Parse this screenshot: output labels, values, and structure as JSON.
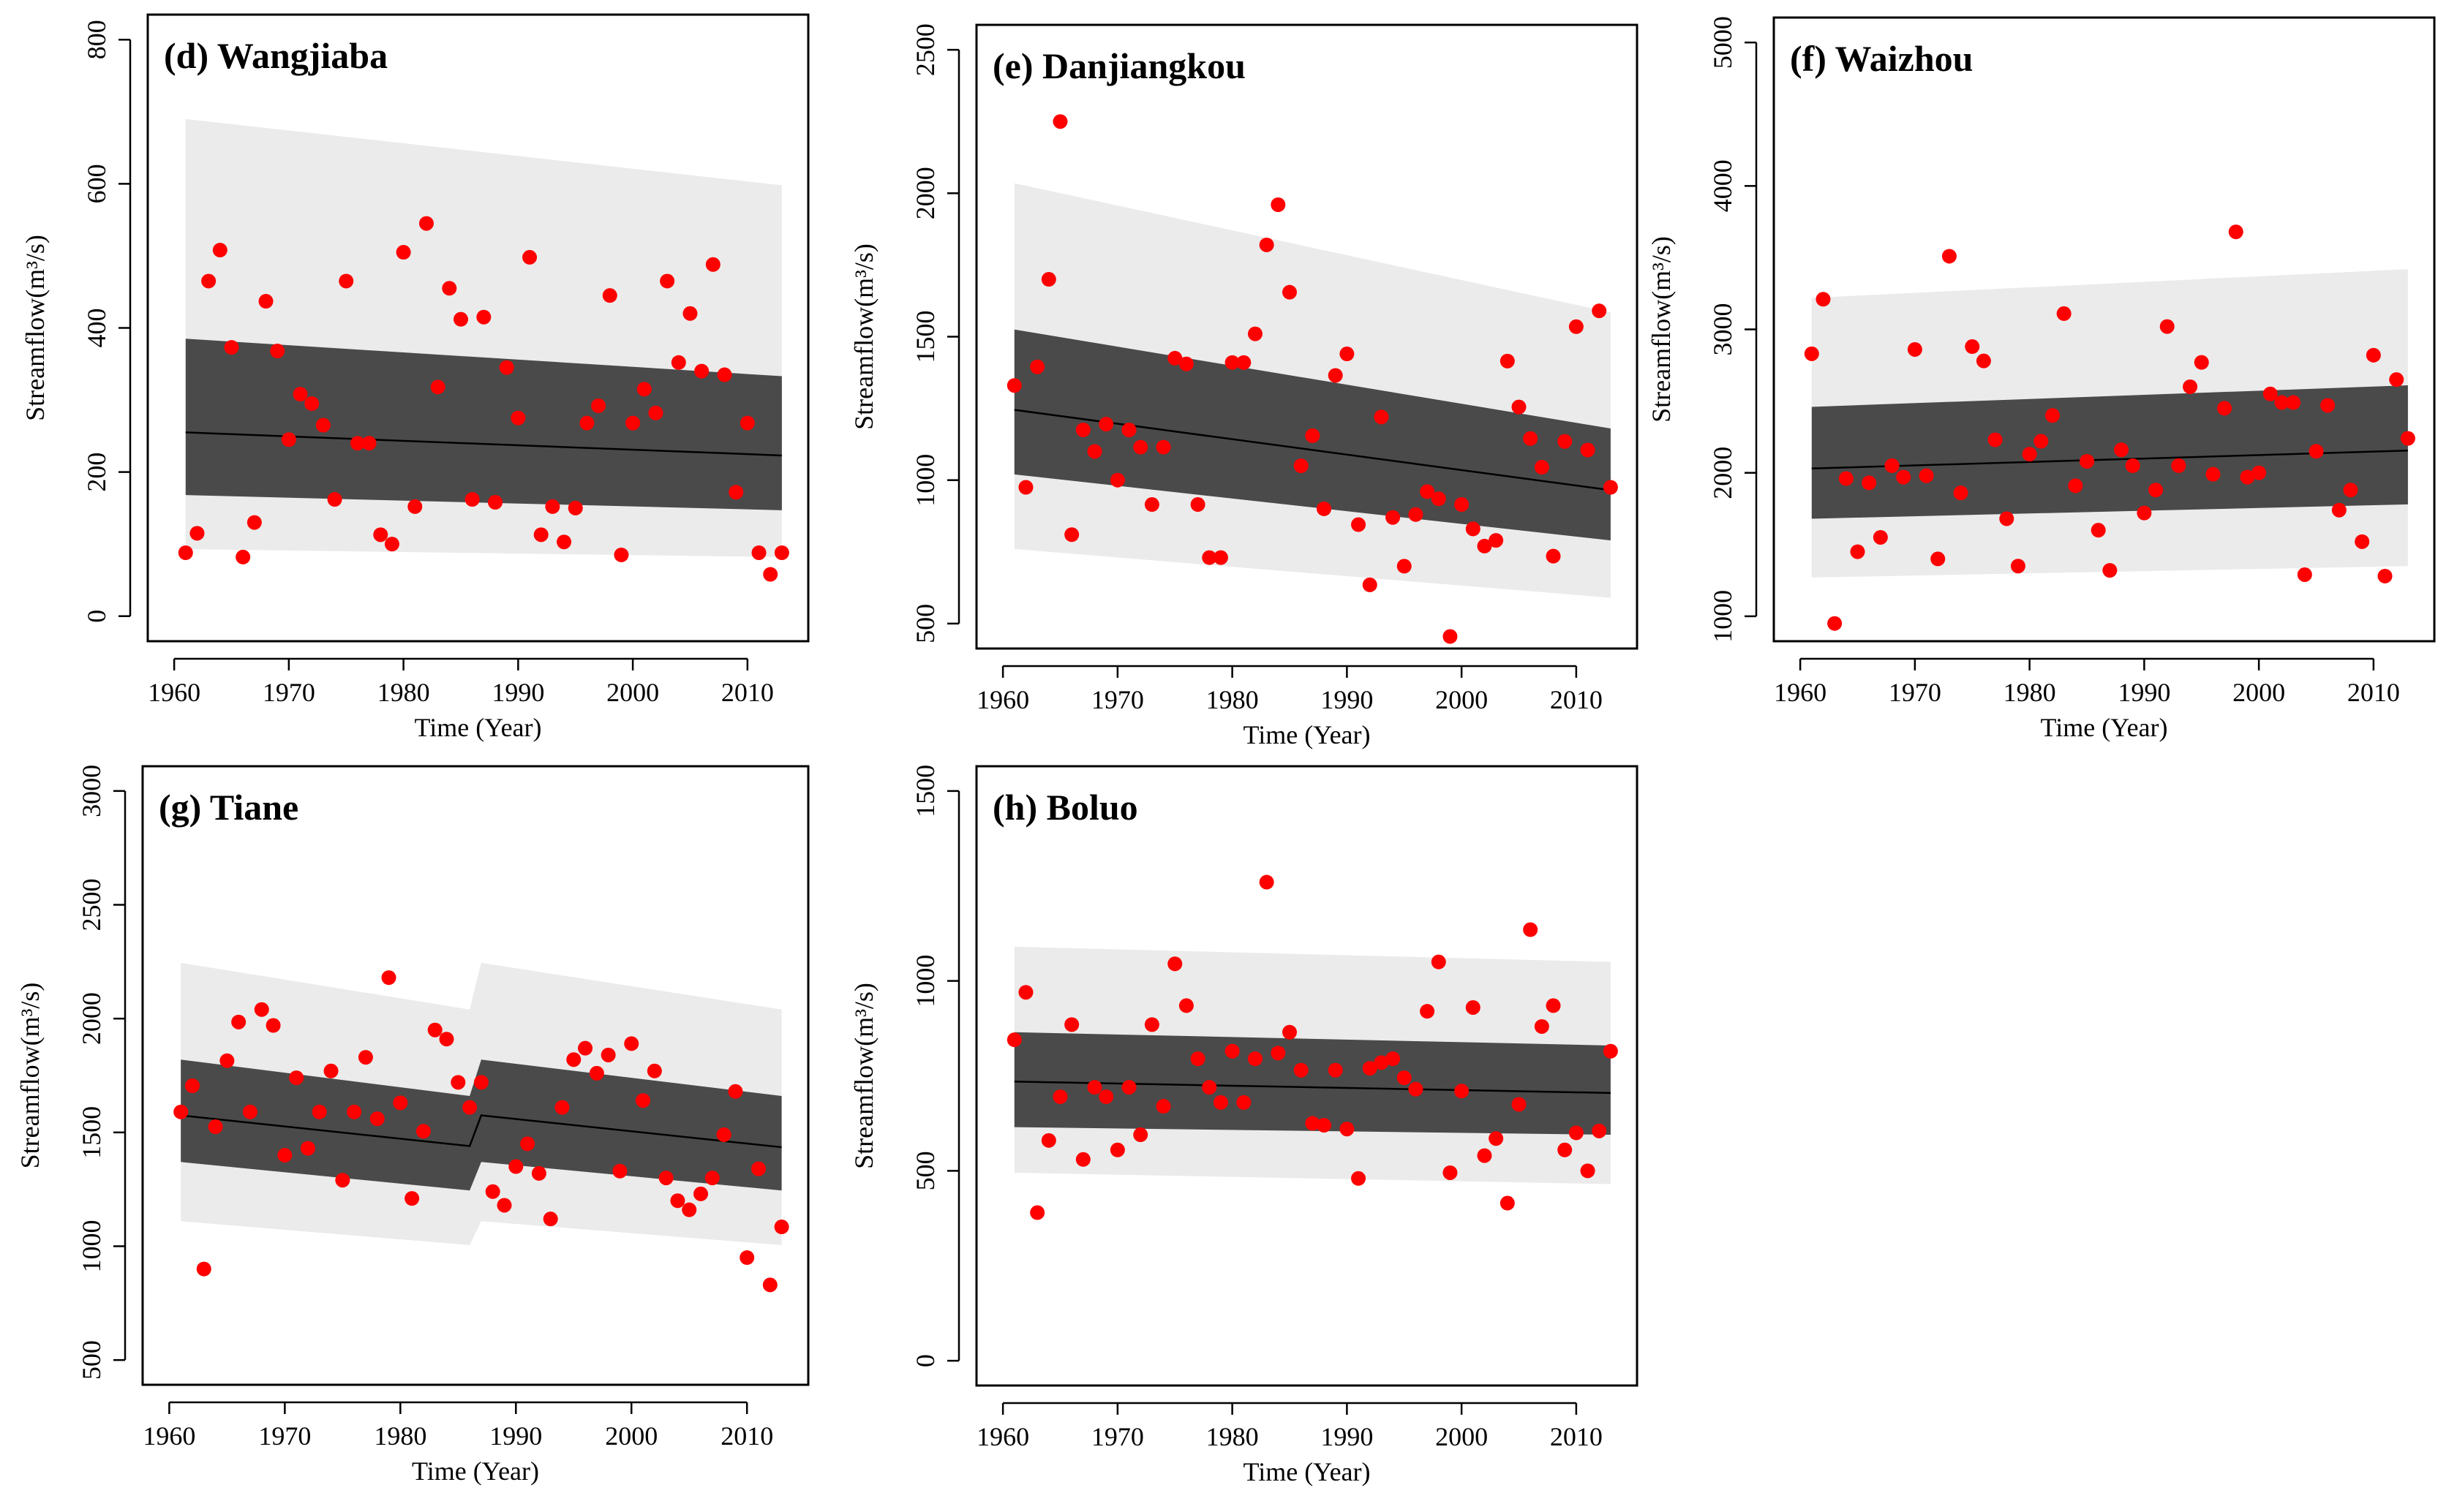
{
  "chart_data": [
    {
      "type": "scatter",
      "title": "(d) Wangjiaba",
      "xlabel": "Time (Year)",
      "ylabel": "Streamflow",
      "ylabel_unit": "(m³/s)",
      "xlim": [
        1960,
        2013
      ],
      "ylim": [
        0,
        800
      ],
      "xticks": [
        1960,
        1970,
        1980,
        1990,
        2000,
        2010
      ],
      "yticks": [
        0,
        200,
        400,
        600,
        800
      ],
      "trend_line": [
        [
          1961,
          255
        ],
        [
          2013,
          223
        ]
      ],
      "inner_band": {
        "lower": [
          [
            1961,
            168
          ],
          [
            2013,
            147
          ]
        ],
        "upper": [
          [
            1961,
            385
          ],
          [
            2013,
            333
          ]
        ]
      },
      "outer_band": {
        "lower": [
          [
            1961,
            93
          ],
          [
            2013,
            82
          ]
        ],
        "upper": [
          [
            1961,
            690
          ],
          [
            2013,
            598
          ]
        ]
      },
      "x": [
        1961,
        1962,
        1963,
        1964,
        1965,
        1966,
        1967,
        1968,
        1969,
        1970,
        1971,
        1972,
        1973,
        1974,
        1975,
        1976,
        1977,
        1978,
        1979,
        1980,
        1981,
        1982,
        1983,
        1984,
        1985,
        1986,
        1987,
        1988,
        1989,
        1990,
        1991,
        1992,
        1993,
        1994,
        1995,
        1996,
        1997,
        1998,
        1999,
        2000,
        2001,
        2002,
        2003,
        2004,
        2005,
        2006,
        2007,
        2008,
        2009,
        2010,
        2011,
        2012,
        2013
      ],
      "y": [
        88,
        115,
        465,
        508,
        373,
        82,
        130,
        437,
        368,
        245,
        308,
        295,
        265,
        162,
        465,
        240,
        240,
        113,
        100,
        505,
        152,
        545,
        318,
        455,
        412,
        162,
        415,
        158,
        345,
        275,
        498,
        113,
        152,
        103,
        150,
        268,
        292,
        445,
        85,
        268,
        315,
        282,
        465,
        352,
        420,
        340,
        488,
        335,
        172,
        268,
        88,
        58,
        88
      ]
    },
    {
      "type": "scatter",
      "title": "(e) Danjiangkou",
      "xlabel": "Time (Year)",
      "ylabel": "Streamflow",
      "ylabel_unit": "(m³/s)",
      "xlim": [
        1960,
        2013
      ],
      "ylim": [
        500,
        2500
      ],
      "xticks": [
        1960,
        1970,
        1980,
        1990,
        2000,
        2010
      ],
      "yticks": [
        500,
        1000,
        1500,
        2000,
        2500
      ],
      "trend_line": [
        [
          1961,
          1245
        ],
        [
          2013,
          965
        ]
      ],
      "inner_band": {
        "lower": [
          [
            1961,
            1020
          ],
          [
            2013,
            790
          ]
        ],
        "upper": [
          [
            1961,
            1525
          ],
          [
            2013,
            1180
          ]
        ]
      },
      "outer_band": {
        "lower": [
          [
            1961,
            760
          ],
          [
            2013,
            590
          ]
        ],
        "upper": [
          [
            1961,
            2035
          ],
          [
            2013,
            1585
          ]
        ]
      },
      "x": [
        1961,
        1962,
        1963,
        1964,
        1965,
        1966,
        1967,
        1968,
        1969,
        1970,
        1971,
        1972,
        1973,
        1974,
        1975,
        1976,
        1977,
        1978,
        1979,
        1980,
        1981,
        1982,
        1983,
        1984,
        1985,
        1986,
        1987,
        1988,
        1989,
        1990,
        1991,
        1992,
        1993,
        1994,
        1995,
        1996,
        1997,
        1998,
        1999,
        2000,
        2001,
        2002,
        2003,
        2004,
        2005,
        2006,
        2007,
        2008,
        2009,
        2010,
        2011,
        2012,
        2013
      ],
      "y": [
        1330,
        975,
        1395,
        1700,
        2250,
        810,
        1175,
        1100,
        1195,
        1000,
        1175,
        1115,
        915,
        1115,
        1425,
        1405,
        915,
        730,
        730,
        1410,
        1410,
        1510,
        1820,
        1960,
        1655,
        1050,
        1155,
        900,
        1365,
        1440,
        845,
        635,
        1220,
        870,
        700,
        880,
        960,
        935,
        455,
        915,
        830,
        770,
        790,
        1415,
        1255,
        1145,
        1045,
        735,
        1135,
        1535,
        1105,
        1590,
        975
      ]
    },
    {
      "type": "scatter",
      "title": "(f) Waizhou",
      "xlabel": "Time (Year)",
      "ylabel": "Streamflow",
      "ylabel_unit": "(m³/s)",
      "xlim": [
        1960,
        2013
      ],
      "ylim": [
        1000,
        5000
      ],
      "xticks": [
        1960,
        1970,
        1980,
        1990,
        2000,
        2010
      ],
      "yticks": [
        1000,
        2000,
        3000,
        4000,
        5000
      ],
      "trend_line": [
        [
          1961,
          2030
        ],
        [
          2013,
          2155
        ]
      ],
      "inner_band": {
        "lower": [
          [
            1961,
            1680
          ],
          [
            2013,
            1780
          ]
        ],
        "upper": [
          [
            1961,
            2460
          ],
          [
            2013,
            2610
          ]
        ]
      },
      "outer_band": {
        "lower": [
          [
            1961,
            1270
          ],
          [
            2013,
            1350
          ]
        ],
        "upper": [
          [
            1961,
            3220
          ],
          [
            2013,
            3420
          ]
        ]
      },
      "x": [
        1961,
        1962,
        1963,
        1964,
        1965,
        1966,
        1967,
        1968,
        1969,
        1970,
        1971,
        1972,
        1973,
        1974,
        1975,
        1976,
        1977,
        1978,
        1979,
        1980,
        1981,
        1982,
        1983,
        1984,
        1985,
        1986,
        1987,
        1988,
        1989,
        1990,
        1991,
        1992,
        1993,
        1994,
        1995,
        1996,
        1997,
        1998,
        1999,
        2000,
        2001,
        2002,
        2003,
        2004,
        2005,
        2006,
        2007,
        2008,
        2009,
        2010,
        2011,
        2012,
        2013
      ],
      "y": [
        2830,
        3210,
        950,
        1960,
        1450,
        1930,
        1550,
        2050,
        1970,
        2860,
        1980,
        1400,
        3510,
        1860,
        2880,
        2780,
        2230,
        1680,
        1350,
        2130,
        2220,
        2400,
        3110,
        1910,
        2080,
        1600,
        1320,
        2160,
        2050,
        1720,
        1880,
        3020,
        2050,
        2600,
        2770,
        1990,
        2450,
        3680,
        1970,
        2000,
        2550,
        2490,
        2490,
        1290,
        2150,
        2470,
        1740,
        1880,
        1520,
        2820,
        1280,
        2650,
        2240
      ]
    },
    {
      "type": "scatter",
      "title": "(g) Tiane",
      "xlabel": "Time (Year)",
      "ylabel": "Streamflow",
      "ylabel_unit": "(m³/s)",
      "xlim": [
        1960,
        2013
      ],
      "ylim": [
        500,
        3000
      ],
      "xticks": [
        1960,
        1970,
        1980,
        1990,
        2000,
        2010
      ],
      "yticks": [
        500,
        1000,
        1500,
        2000,
        2500,
        3000
      ],
      "trend_line": [
        [
          1961,
          1575
        ],
        [
          1986,
          1440
        ],
        [
          1987,
          1575
        ],
        [
          2013,
          1435
        ]
      ],
      "inner_band": {
        "lower": [
          [
            1961,
            1370
          ],
          [
            1986,
            1245
          ],
          [
            1987,
            1370
          ],
          [
            2013,
            1245
          ]
        ],
        "upper": [
          [
            1961,
            1820
          ],
          [
            1986,
            1660
          ],
          [
            1987,
            1820
          ],
          [
            2013,
            1660
          ]
        ]
      },
      "outer_band": {
        "lower": [
          [
            1961,
            1110
          ],
          [
            1986,
            1005
          ],
          [
            1987,
            1110
          ],
          [
            2013,
            1005
          ]
        ],
        "upper": [
          [
            1961,
            2245
          ],
          [
            1986,
            2040
          ],
          [
            1987,
            2245
          ],
          [
            2013,
            2040
          ]
        ]
      },
      "x": [
        1961,
        1962,
        1963,
        1964,
        1965,
        1966,
        1967,
        1968,
        1969,
        1970,
        1971,
        1972,
        1973,
        1974,
        1975,
        1976,
        1977,
        1978,
        1979,
        1980,
        1981,
        1982,
        1983,
        1984,
        1985,
        1986,
        1987,
        1988,
        1989,
        1990,
        1991,
        1992,
        1993,
        1994,
        1995,
        1996,
        1997,
        1998,
        1999,
        2000,
        2001,
        2002,
        2003,
        2004,
        2005,
        2006,
        2007,
        2008,
        2009,
        2010,
        2011,
        2012,
        2013
      ],
      "y": [
        1590,
        1705,
        900,
        1525,
        1815,
        1985,
        1590,
        2040,
        1970,
        1400,
        1740,
        1430,
        1590,
        1770,
        1290,
        1590,
        1830,
        1560,
        2180,
        1630,
        1210,
        1505,
        1950,
        1910,
        1720,
        1610,
        1720,
        1240,
        1180,
        1350,
        1450,
        1320,
        1120,
        1610,
        1820,
        1870,
        1760,
        1840,
        1330,
        1890,
        1640,
        1770,
        1300,
        1200,
        1160,
        1230,
        1300,
        1490,
        1680,
        950,
        1340,
        830,
        1085
      ]
    },
    {
      "type": "scatter",
      "title": "(h) Boluo",
      "xlabel": "Time (Year)",
      "ylabel": "Streamflow",
      "ylabel_unit": "(m³/s)",
      "xlim": [
        1960,
        2013
      ],
      "ylim": [
        0,
        1500
      ],
      "xticks": [
        1960,
        1970,
        1980,
        1990,
        2000,
        2010
      ],
      "yticks": [
        0,
        500,
        1000,
        1500
      ],
      "trend_line": [
        [
          1961,
          735
        ],
        [
          2013,
          705
        ]
      ],
      "inner_band": {
        "lower": [
          [
            1961,
            615
          ],
          [
            2013,
            595
          ]
        ],
        "upper": [
          [
            1961,
            865
          ],
          [
            2013,
            830
          ]
        ]
      },
      "outer_band": {
        "lower": [
          [
            1961,
            495
          ],
          [
            2013,
            465
          ]
        ],
        "upper": [
          [
            1961,
            1090
          ],
          [
            2013,
            1050
          ]
        ]
      },
      "x": [
        1961,
        1962,
        1963,
        1964,
        1965,
        1966,
        1967,
        1968,
        1969,
        1970,
        1971,
        1972,
        1973,
        1974,
        1975,
        1976,
        1977,
        1978,
        1979,
        1980,
        1981,
        1982,
        1983,
        1984,
        1985,
        1986,
        1987,
        1988,
        1989,
        1990,
        1991,
        1992,
        1993,
        1994,
        1995,
        1996,
        1997,
        1998,
        1999,
        2000,
        2001,
        2002,
        2003,
        2004,
        2005,
        2006,
        2007,
        2008,
        2009,
        2010,
        2011,
        2012,
        2013
      ],
      "y": [
        845,
        970,
        390,
        580,
        695,
        885,
        530,
        720,
        695,
        555,
        720,
        595,
        885,
        670,
        1045,
        935,
        795,
        720,
        680,
        815,
        680,
        795,
        1260,
        810,
        865,
        765,
        625,
        620,
        765,
        610,
        480,
        770,
        785,
        795,
        745,
        715,
        920,
        1050,
        495,
        710,
        930,
        540,
        585,
        415,
        675,
        1135,
        880,
        935,
        555,
        600,
        500,
        605,
        815
      ]
    }
  ]
}
